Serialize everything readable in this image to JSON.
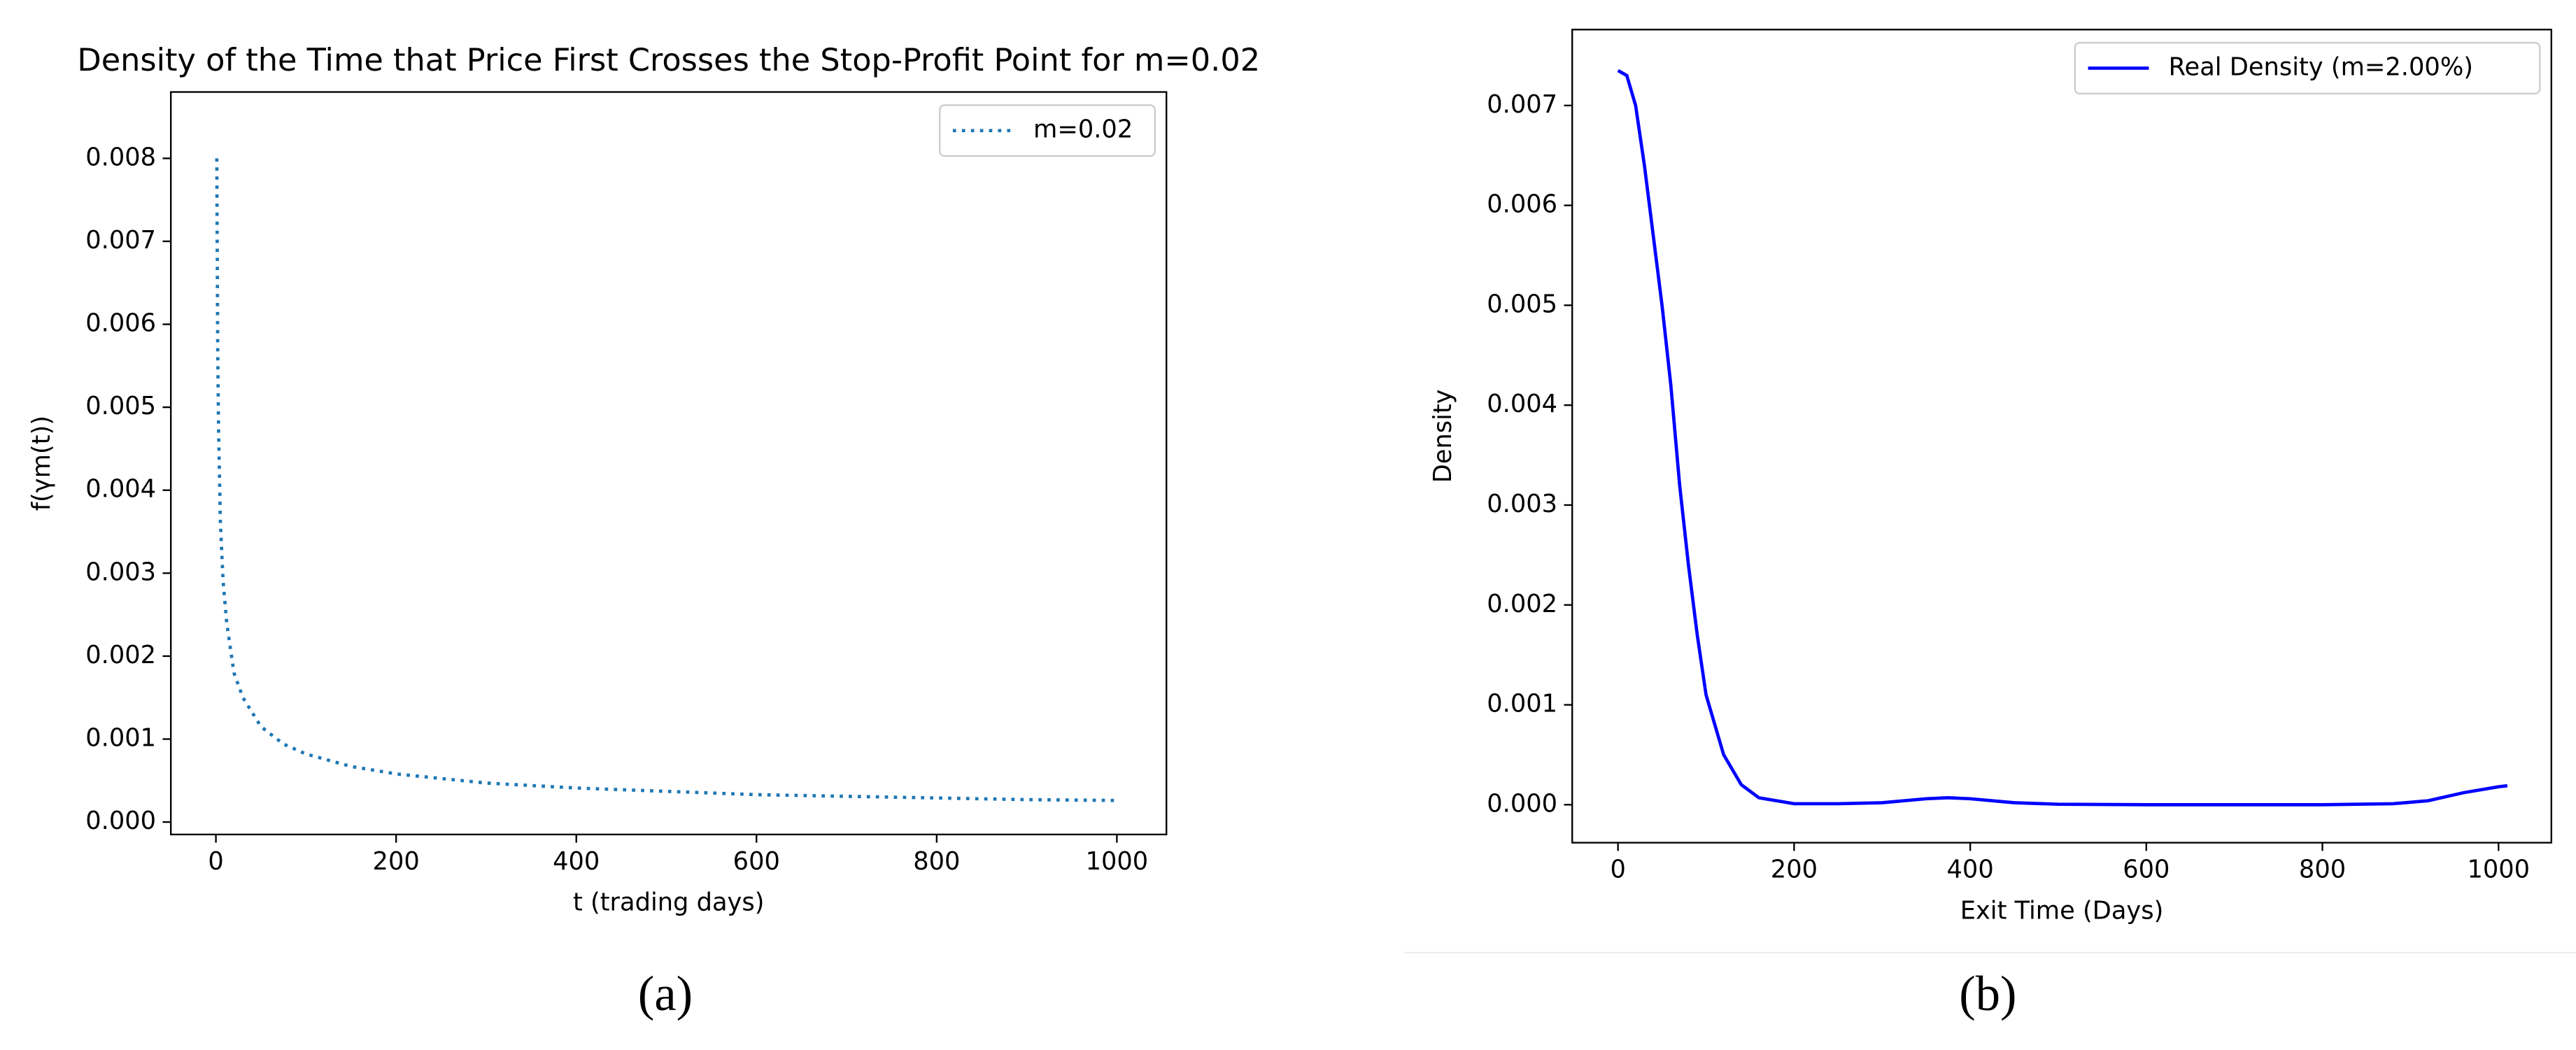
{
  "chart_data": [
    {
      "type": "line",
      "title": "Density of the Time that Price First Crosses the Stop-Profit Point for m=0.02",
      "x_label": "t (trading days)",
      "y_label": "f(γm(t))",
      "caption": "(a)",
      "x": [
        1,
        2,
        3,
        5,
        8,
        12,
        20,
        30,
        50,
        75,
        100,
        150,
        200,
        300,
        400,
        500,
        600,
        700,
        800,
        900,
        1000
      ],
      "series": [
        {
          "name": "m=0.02",
          "color": "#1f77b4",
          "dash": "dotted",
          "values": [
            0.008,
            0.0057,
            0.0047,
            0.0036,
            0.0029,
            0.0024,
            0.0018,
            0.0015,
            0.00115,
            0.00094,
            0.00082,
            0.00067,
            0.00058,
            0.00047,
            0.00041,
            0.00037,
            0.00033,
            0.00031,
            0.00029,
            0.00027,
            0.00026
          ]
        }
      ],
      "xlim": [
        -50,
        1055
      ],
      "ylim": [
        -0.00015,
        0.0088
      ],
      "xticks": [
        0,
        200,
        400,
        600,
        800,
        1000
      ],
      "yticks": [
        {
          "value": 0,
          "label": "0.000"
        },
        {
          "value": 0.001,
          "label": "0.001"
        },
        {
          "value": 0.002,
          "label": "0.002"
        },
        {
          "value": 0.003,
          "label": "0.003"
        },
        {
          "value": 0.004,
          "label": "0.004"
        },
        {
          "value": 0.005,
          "label": "0.005"
        },
        {
          "value": 0.006,
          "label": "0.006"
        },
        {
          "value": 0.007,
          "label": "0.007"
        },
        {
          "value": 0.008,
          "label": "0.008"
        }
      ],
      "legend": "upper right",
      "grid": false
    },
    {
      "type": "line",
      "x_label": "Exit Time (Days)",
      "y_label": "Density",
      "caption": "(b)",
      "x": [
        0,
        10,
        20,
        30,
        40,
        50,
        60,
        70,
        80,
        90,
        100,
        120,
        140,
        160,
        200,
        250,
        300,
        350,
        375,
        400,
        450,
        500,
        600,
        700,
        800,
        880,
        920,
        960,
        1000,
        1010
      ],
      "series": [
        {
          "name": "Real Density (m=2.00%)",
          "color": "#0000ff",
          "dash": "solid",
          "values": [
            0.00735,
            0.0073,
            0.007,
            0.0064,
            0.0057,
            0.005,
            0.0042,
            0.0032,
            0.0024,
            0.0017,
            0.0011,
            0.0005,
            0.0002,
            7e-05,
            1e-05,
            1e-05,
            2e-05,
            6e-05,
            7e-05,
            6e-05,
            2e-05,
            5e-06,
            0,
            0,
            0,
            1e-05,
            4e-05,
            0.00012,
            0.00018,
            0.00019
          ]
        }
      ],
      "xlim": [
        -52,
        1060
      ],
      "ylim": [
        -0.00038,
        0.00776
      ],
      "xticks": [
        0,
        200,
        400,
        600,
        800,
        1000
      ],
      "yticks": [
        {
          "value": 0,
          "label": "0.000"
        },
        {
          "value": 0.001,
          "label": "0.001"
        },
        {
          "value": 0.002,
          "label": "0.002"
        },
        {
          "value": 0.003,
          "label": "0.003"
        },
        {
          "value": 0.004,
          "label": "0.004"
        },
        {
          "value": 0.005,
          "label": "0.005"
        },
        {
          "value": 0.006,
          "label": "0.006"
        },
        {
          "value": 0.007,
          "label": "0.007"
        }
      ],
      "legend": "upper right",
      "grid": false
    }
  ]
}
